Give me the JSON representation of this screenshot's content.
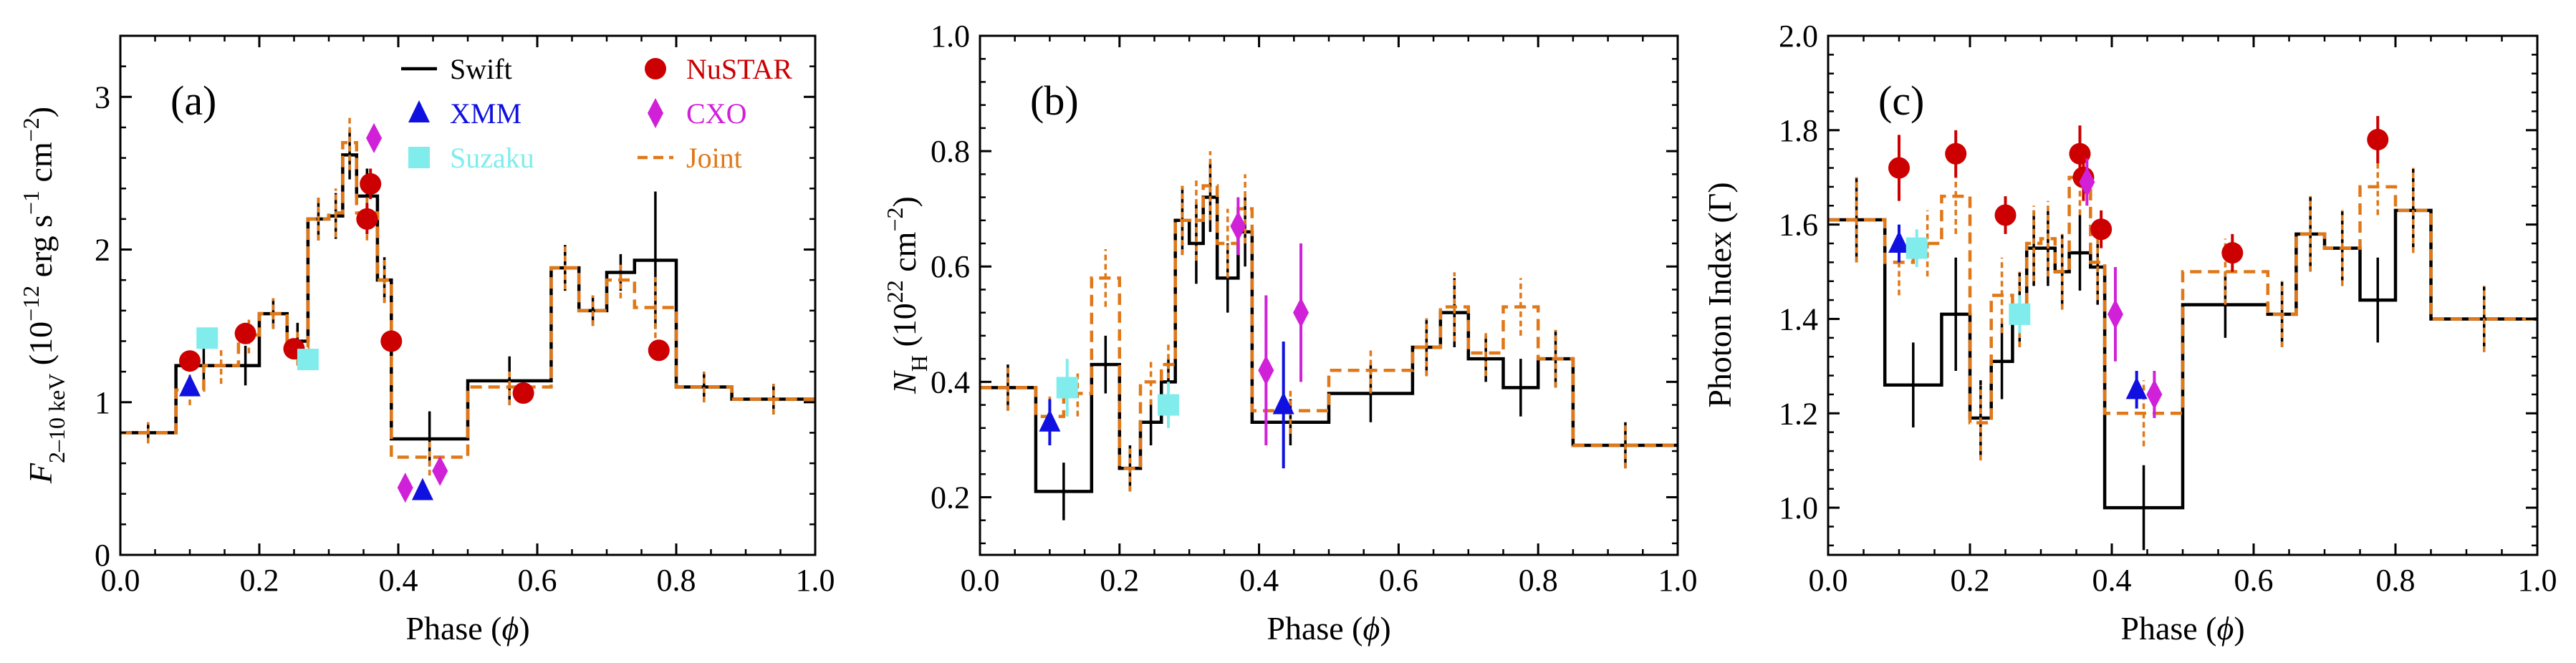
{
  "colors": {
    "swift": "#000000",
    "xmm": "#1010e0",
    "suzaku": "#80ecec",
    "nustar": "#cc0000",
    "cxo": "#d020d8",
    "joint": "#e07818"
  },
  "legend": {
    "swift": "Swift",
    "xmm": "XMM",
    "suzaku": "Suzaku",
    "nustar": "NuSTAR",
    "cxo": "CXO",
    "joint": "Joint"
  },
  "chart_data": [
    {
      "type": "line",
      "panel_label": "(a)",
      "xlabel": "Phase (ϕ)",
      "ylabel": "F2–10 keV (10−12 erg s−1 cm−2)",
      "xlim": [
        0.0,
        1.0
      ],
      "ylim": [
        0.0,
        3.4
      ],
      "xticks": [
        0.0,
        0.2,
        0.4,
        0.6,
        0.8,
        1.0
      ],
      "xtick_labels": [
        "0.0",
        "0.2",
        "0.4",
        "0.6",
        "0.8",
        "1.0"
      ],
      "yticks": [
        0,
        1,
        2,
        3
      ],
      "ytick_labels": [
        "0",
        "1",
        "2",
        "3"
      ],
      "legend_position": "top-right",
      "series": [
        {
          "name": "Swift",
          "kind": "step",
          "bins": [
            [
              0.0,
              0.08,
              0.8,
              0.06
            ],
            [
              0.08,
              0.16,
              1.24,
              0.12
            ],
            [
              0.16,
              0.2,
              1.24,
              0.13
            ],
            [
              0.2,
              0.24,
              1.58,
              0.1
            ],
            [
              0.24,
              0.27,
              1.4,
              0.12
            ],
            [
              0.27,
              0.3,
              2.2,
              0.14
            ],
            [
              0.3,
              0.32,
              2.22,
              0.15
            ],
            [
              0.32,
              0.34,
              2.62,
              0.16
            ],
            [
              0.34,
              0.37,
              2.35,
              0.18
            ],
            [
              0.37,
              0.39,
              1.8,
              0.15
            ],
            [
              0.39,
              0.5,
              0.76,
              0.18
            ],
            [
              0.5,
              0.62,
              1.14,
              0.16
            ],
            [
              0.62,
              0.66,
              1.88,
              0.15
            ],
            [
              0.66,
              0.7,
              1.6,
              0.1
            ],
            [
              0.7,
              0.74,
              1.85,
              0.12
            ],
            [
              0.74,
              0.8,
              1.93,
              0.45
            ],
            [
              0.8,
              0.88,
              1.1,
              0.1
            ],
            [
              0.88,
              1.0,
              1.02,
              0.1
            ]
          ]
        },
        {
          "name": "Joint",
          "kind": "step",
          "bins": [
            [
              0.0,
              0.08,
              0.8,
              0.07
            ],
            [
              0.08,
              0.12,
              1.08,
              0.1
            ],
            [
              0.12,
              0.17,
              1.24,
              0.12
            ],
            [
              0.17,
              0.2,
              1.44,
              0.12
            ],
            [
              0.2,
              0.24,
              1.58,
              0.1
            ],
            [
              0.24,
              0.27,
              1.36,
              0.12
            ],
            [
              0.27,
              0.3,
              2.2,
              0.14
            ],
            [
              0.3,
              0.32,
              2.24,
              0.16
            ],
            [
              0.32,
              0.34,
              2.7,
              0.18
            ],
            [
              0.34,
              0.37,
              2.24,
              0.18
            ],
            [
              0.37,
              0.39,
              1.8,
              0.15
            ],
            [
              0.39,
              0.5,
              0.64,
              0.12
            ],
            [
              0.5,
              0.62,
              1.1,
              0.12
            ],
            [
              0.62,
              0.66,
              1.88,
              0.14
            ],
            [
              0.66,
              0.7,
              1.6,
              0.1
            ],
            [
              0.7,
              0.74,
              1.8,
              0.12
            ],
            [
              0.74,
              0.8,
              1.62,
              0.2
            ],
            [
              0.8,
              0.88,
              1.1,
              0.1
            ],
            [
              0.88,
              1.0,
              1.02,
              0.1
            ]
          ]
        },
        {
          "name": "NuSTAR",
          "kind": "circle",
          "points": [
            [
              0.1,
              1.27,
              0.06
            ],
            [
              0.18,
              1.45,
              0.06
            ],
            [
              0.25,
              1.35,
              0.06
            ],
            [
              0.36,
              2.43,
              0.1
            ],
            [
              0.355,
              2.2,
              0.1
            ],
            [
              0.39,
              1.4,
              0.06
            ],
            [
              0.58,
              1.06,
              0.05
            ],
            [
              0.775,
              1.34,
              0.06
            ]
          ]
        },
        {
          "name": "XMM",
          "kind": "triangle",
          "points": [
            [
              0.1,
              1.1,
              0.04
            ],
            [
              0.435,
              0.42,
              0.03
            ]
          ]
        },
        {
          "name": "Suzaku",
          "kind": "square",
          "points": [
            [
              0.125,
              1.42,
              0.04
            ],
            [
              0.27,
              1.28,
              0.04
            ]
          ]
        },
        {
          "name": "CXO",
          "kind": "diamond",
          "points": [
            [
              0.365,
              2.73,
              0.08
            ],
            [
              0.41,
              0.44,
              0.03
            ],
            [
              0.46,
              0.55,
              0.04
            ]
          ]
        }
      ]
    },
    {
      "type": "line",
      "panel_label": "(b)",
      "xlabel": "Phase (ϕ)",
      "ylabel": "NH (1022 cm−2)",
      "xlim": [
        0.0,
        1.0
      ],
      "ylim": [
        0.1,
        1.0
      ],
      "xticks": [
        0.0,
        0.2,
        0.4,
        0.6,
        0.8,
        1.0
      ],
      "xtick_labels": [
        "0.0",
        "0.2",
        "0.4",
        "0.6",
        "0.8",
        "1.0"
      ],
      "yticks": [
        0.2,
        0.4,
        0.6,
        0.8,
        1.0
      ],
      "ytick_labels": [
        "0.2",
        "0.4",
        "0.6",
        "0.8",
        "1.0"
      ],
      "series": [
        {
          "name": "Swift",
          "kind": "step",
          "bins": [
            [
              0.0,
              0.08,
              0.39,
              0.04
            ],
            [
              0.08,
              0.16,
              0.21,
              0.05
            ],
            [
              0.16,
              0.2,
              0.43,
              0.05
            ],
            [
              0.2,
              0.23,
              0.25,
              0.04
            ],
            [
              0.23,
              0.26,
              0.33,
              0.04
            ],
            [
              0.26,
              0.28,
              0.4,
              0.04
            ],
            [
              0.28,
              0.3,
              0.68,
              0.06
            ],
            [
              0.3,
              0.32,
              0.64,
              0.07
            ],
            [
              0.32,
              0.34,
              0.72,
              0.06
            ],
            [
              0.34,
              0.37,
              0.58,
              0.06
            ],
            [
              0.37,
              0.39,
              0.66,
              0.06
            ],
            [
              0.39,
              0.5,
              0.33,
              0.04
            ],
            [
              0.5,
              0.62,
              0.38,
              0.05
            ],
            [
              0.62,
              0.66,
              0.46,
              0.05
            ],
            [
              0.66,
              0.7,
              0.52,
              0.06
            ],
            [
              0.7,
              0.75,
              0.44,
              0.04
            ],
            [
              0.75,
              0.8,
              0.39,
              0.05
            ],
            [
              0.8,
              0.85,
              0.44,
              0.05
            ],
            [
              0.85,
              1.0,
              0.29,
              0.04
            ]
          ]
        },
        {
          "name": "Joint",
          "kind": "step",
          "bins": [
            [
              0.0,
              0.08,
              0.39,
              0.04
            ],
            [
              0.08,
              0.12,
              0.34,
              0.04
            ],
            [
              0.12,
              0.16,
              0.38,
              0.04
            ],
            [
              0.16,
              0.2,
              0.58,
              0.05
            ],
            [
              0.2,
              0.23,
              0.25,
              0.04
            ],
            [
              0.23,
              0.26,
              0.4,
              0.04
            ],
            [
              0.26,
              0.28,
              0.43,
              0.04
            ],
            [
              0.28,
              0.3,
              0.68,
              0.06
            ],
            [
              0.3,
              0.32,
              0.68,
              0.07
            ],
            [
              0.32,
              0.34,
              0.74,
              0.06
            ],
            [
              0.34,
              0.37,
              0.64,
              0.06
            ],
            [
              0.37,
              0.39,
              0.7,
              0.06
            ],
            [
              0.39,
              0.5,
              0.35,
              0.04
            ],
            [
              0.5,
              0.62,
              0.42,
              0.04
            ],
            [
              0.62,
              0.66,
              0.46,
              0.05
            ],
            [
              0.66,
              0.7,
              0.53,
              0.06
            ],
            [
              0.7,
              0.75,
              0.45,
              0.04
            ],
            [
              0.75,
              0.8,
              0.53,
              0.05
            ],
            [
              0.8,
              0.85,
              0.44,
              0.05
            ],
            [
              0.85,
              1.0,
              0.29,
              0.04
            ]
          ]
        },
        {
          "name": "XMM",
          "kind": "triangle",
          "points": [
            [
              0.1,
              0.33,
              0.04
            ],
            [
              0.435,
              0.36,
              0.11
            ]
          ]
        },
        {
          "name": "Suzaku",
          "kind": "square",
          "points": [
            [
              0.125,
              0.39,
              0.05
            ],
            [
              0.27,
              0.36,
              0.04
            ]
          ]
        },
        {
          "name": "CXO",
          "kind": "diamond",
          "points": [
            [
              0.37,
              0.67,
              0.05
            ],
            [
              0.41,
              0.42,
              0.13
            ],
            [
              0.46,
              0.52,
              0.12
            ]
          ]
        }
      ]
    },
    {
      "type": "line",
      "panel_label": "(c)",
      "xlabel": "Phase (ϕ)",
      "ylabel": "Photon Index (Γ)",
      "xlim": [
        0.0,
        1.0
      ],
      "ylim": [
        0.9,
        2.0
      ],
      "xticks": [
        0.0,
        0.2,
        0.4,
        0.6,
        0.8,
        1.0
      ],
      "xtick_labels": [
        "0.0",
        "0.2",
        "0.4",
        "0.6",
        "0.8",
        "1.0"
      ],
      "yticks": [
        1.0,
        1.2,
        1.4,
        1.6,
        1.8,
        2.0
      ],
      "ytick_labels": [
        "1.0",
        "1.2",
        "1.4",
        "1.6",
        "1.8",
        "2.0"
      ],
      "series": [
        {
          "name": "Swift",
          "kind": "step",
          "bins": [
            [
              0.0,
              0.08,
              1.61,
              0.09
            ],
            [
              0.08,
              0.16,
              1.26,
              0.09
            ],
            [
              0.16,
              0.2,
              1.41,
              0.12
            ],
            [
              0.2,
              0.23,
              1.19,
              0.08
            ],
            [
              0.23,
              0.26,
              1.31,
              0.08
            ],
            [
              0.26,
              0.28,
              1.42,
              0.08
            ],
            [
              0.28,
              0.3,
              1.55,
              0.08
            ],
            [
              0.3,
              0.32,
              1.55,
              0.08
            ],
            [
              0.32,
              0.34,
              1.5,
              0.08
            ],
            [
              0.34,
              0.37,
              1.54,
              0.08
            ],
            [
              0.37,
              0.39,
              1.51,
              0.08
            ],
            [
              0.39,
              0.5,
              1.0,
              0.09
            ],
            [
              0.5,
              0.62,
              1.43,
              0.07
            ],
            [
              0.62,
              0.66,
              1.41,
              0.07
            ],
            [
              0.66,
              0.7,
              1.58,
              0.08
            ],
            [
              0.7,
              0.75,
              1.55,
              0.08
            ],
            [
              0.75,
              0.8,
              1.44,
              0.09
            ],
            [
              0.8,
              0.85,
              1.63,
              0.09
            ],
            [
              0.85,
              1.0,
              1.4,
              0.07
            ]
          ]
        },
        {
          "name": "Joint",
          "kind": "step",
          "bins": [
            [
              0.0,
              0.08,
              1.61,
              0.09
            ],
            [
              0.08,
              0.12,
              1.52,
              0.07
            ],
            [
              0.12,
              0.16,
              1.56,
              0.07
            ],
            [
              0.16,
              0.2,
              1.66,
              0.08
            ],
            [
              0.2,
              0.23,
              1.18,
              0.08
            ],
            [
              0.23,
              0.26,
              1.45,
              0.08
            ],
            [
              0.26,
              0.28,
              1.42,
              0.08
            ],
            [
              0.28,
              0.3,
              1.56,
              0.08
            ],
            [
              0.3,
              0.32,
              1.57,
              0.08
            ],
            [
              0.32,
              0.34,
              1.5,
              0.08
            ],
            [
              0.34,
              0.37,
              1.7,
              0.08
            ],
            [
              0.37,
              0.39,
              1.52,
              0.08
            ],
            [
              0.39,
              0.5,
              1.2,
              0.07
            ],
            [
              0.5,
              0.62,
              1.5,
              0.07
            ],
            [
              0.62,
              0.66,
              1.41,
              0.07
            ],
            [
              0.66,
              0.7,
              1.58,
              0.08
            ],
            [
              0.7,
              0.75,
              1.55,
              0.08
            ],
            [
              0.75,
              0.8,
              1.68,
              0.06
            ],
            [
              0.8,
              0.85,
              1.63,
              0.09
            ],
            [
              0.85,
              1.0,
              1.4,
              0.07
            ]
          ]
        },
        {
          "name": "NuSTAR",
          "kind": "circle",
          "points": [
            [
              0.1,
              1.72,
              0.07
            ],
            [
              0.18,
              1.75,
              0.05
            ],
            [
              0.25,
              1.62,
              0.04
            ],
            [
              0.355,
              1.75,
              0.06
            ],
            [
              0.36,
              1.7,
              0.05
            ],
            [
              0.385,
              1.59,
              0.04
            ],
            [
              0.57,
              1.54,
              0.04
            ],
            [
              0.775,
              1.78,
              0.05
            ]
          ]
        },
        {
          "name": "XMM",
          "kind": "triangle",
          "points": [
            [
              0.1,
              1.56,
              0.04
            ],
            [
              0.435,
              1.25,
              0.04
            ]
          ]
        },
        {
          "name": "Suzaku",
          "kind": "square",
          "points": [
            [
              0.125,
              1.55,
              0.04
            ],
            [
              0.27,
              1.41,
              0.04
            ]
          ]
        },
        {
          "name": "CXO",
          "kind": "diamond",
          "points": [
            [
              0.365,
              1.69,
              0.05
            ],
            [
              0.405,
              1.41,
              0.1
            ],
            [
              0.46,
              1.24,
              0.05
            ]
          ]
        }
      ]
    }
  ]
}
